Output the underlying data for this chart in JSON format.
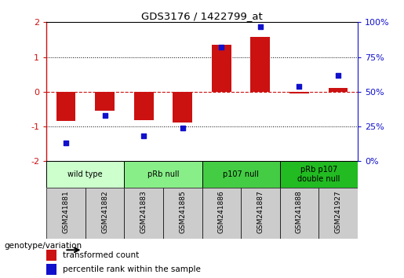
{
  "title": "GDS3176 / 1422799_at",
  "samples": [
    "GSM241881",
    "GSM241882",
    "GSM241883",
    "GSM241885",
    "GSM241886",
    "GSM241887",
    "GSM241888",
    "GSM241927"
  ],
  "bar_values": [
    -0.85,
    -0.55,
    -0.82,
    -0.88,
    1.35,
    1.58,
    -0.05,
    0.1
  ],
  "dot_percentiles": [
    13,
    33,
    18,
    24,
    82,
    97,
    54,
    62
  ],
  "bar_color": "#cc1111",
  "dot_color": "#1111cc",
  "ylim_left": [
    -2,
    2
  ],
  "ylim_right": [
    0,
    100
  ],
  "yticks_left": [
    -2,
    -1,
    0,
    1,
    2
  ],
  "yticks_right": [
    0,
    25,
    50,
    75,
    100
  ],
  "groups": [
    {
      "label": "wild type",
      "samples": [
        0,
        1
      ],
      "color": "#ccffcc"
    },
    {
      "label": "pRb null",
      "samples": [
        2,
        3
      ],
      "color": "#88ee88"
    },
    {
      "label": "p107 null",
      "samples": [
        4,
        5
      ],
      "color": "#44cc44"
    },
    {
      "label": "pRb p107\ndouble null",
      "samples": [
        6,
        7
      ],
      "color": "#22bb22"
    }
  ],
  "legend_bar_label": "transformed count",
  "legend_dot_label": "percentile rank within the sample",
  "genotype_label": "genotype/variation",
  "bg_plot": "#ffffff",
  "bg_sample_header": "#cccccc",
  "fig_bg": "#ffffff"
}
